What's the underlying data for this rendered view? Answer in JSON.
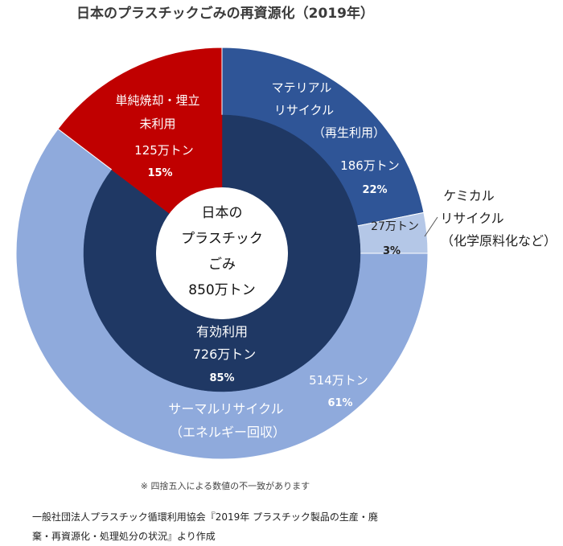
{
  "title": "日本のプラスチックごみの再資源化（2019年）",
  "colors": {
    "material": "#2f5597",
    "chemical": "#b4c7e7",
    "thermal": "#8faadc",
    "unused": "#c00000",
    "effective": "#1f3864",
    "center": "#ffffff"
  },
  "chart_data": {
    "type": "pie",
    "subtype": "nested-donut",
    "title": "日本のプラスチックごみの再資源化（2019年）",
    "center": {
      "lines": [
        "日本の",
        "プラスチック",
        "ごみ",
        "850万トン"
      ]
    },
    "outer": [
      {
        "key": "material",
        "name_lines": [
          "マテリアル",
          "リサイクル",
          "（再生利用）"
        ],
        "value": 186,
        "unit_label": "186万トン",
        "percent": 22,
        "percent_label": "22%"
      },
      {
        "key": "chemical",
        "name_lines": [
          "ケミカル",
          "リサイクル",
          "（化学原料化など）"
        ],
        "value": 27,
        "unit_label": "27万トン",
        "percent": 3,
        "percent_label": "3%"
      },
      {
        "key": "thermal",
        "name_lines": [
          "サーマルリサイクル",
          "（エネルギー回収）"
        ],
        "value": 514,
        "unit_label": "514万トン",
        "percent": 61,
        "percent_label": "61%"
      },
      {
        "key": "unused",
        "name_lines": [
          "単純焼却・埋立",
          "未利用"
        ],
        "value": 125,
        "unit_label": "125万トン",
        "percent": 15,
        "percent_label": "15%"
      }
    ],
    "inner": [
      {
        "key": "effective",
        "name_lines": [
          "有効利用"
        ],
        "value": 726,
        "unit_label": "726万トン",
        "percent": 85,
        "percent_label": "85%"
      },
      {
        "key": "unused",
        "value": 125,
        "percent": 15
      }
    ]
  },
  "footnote": "※ 四捨五入による数値の不一致があります",
  "source_lines": [
    "一般社団法人プラスチック循環利用協会『2019年 プラスチック製品の生産・廃",
    "棄・再資源化・処理処分の状況』より作成"
  ]
}
